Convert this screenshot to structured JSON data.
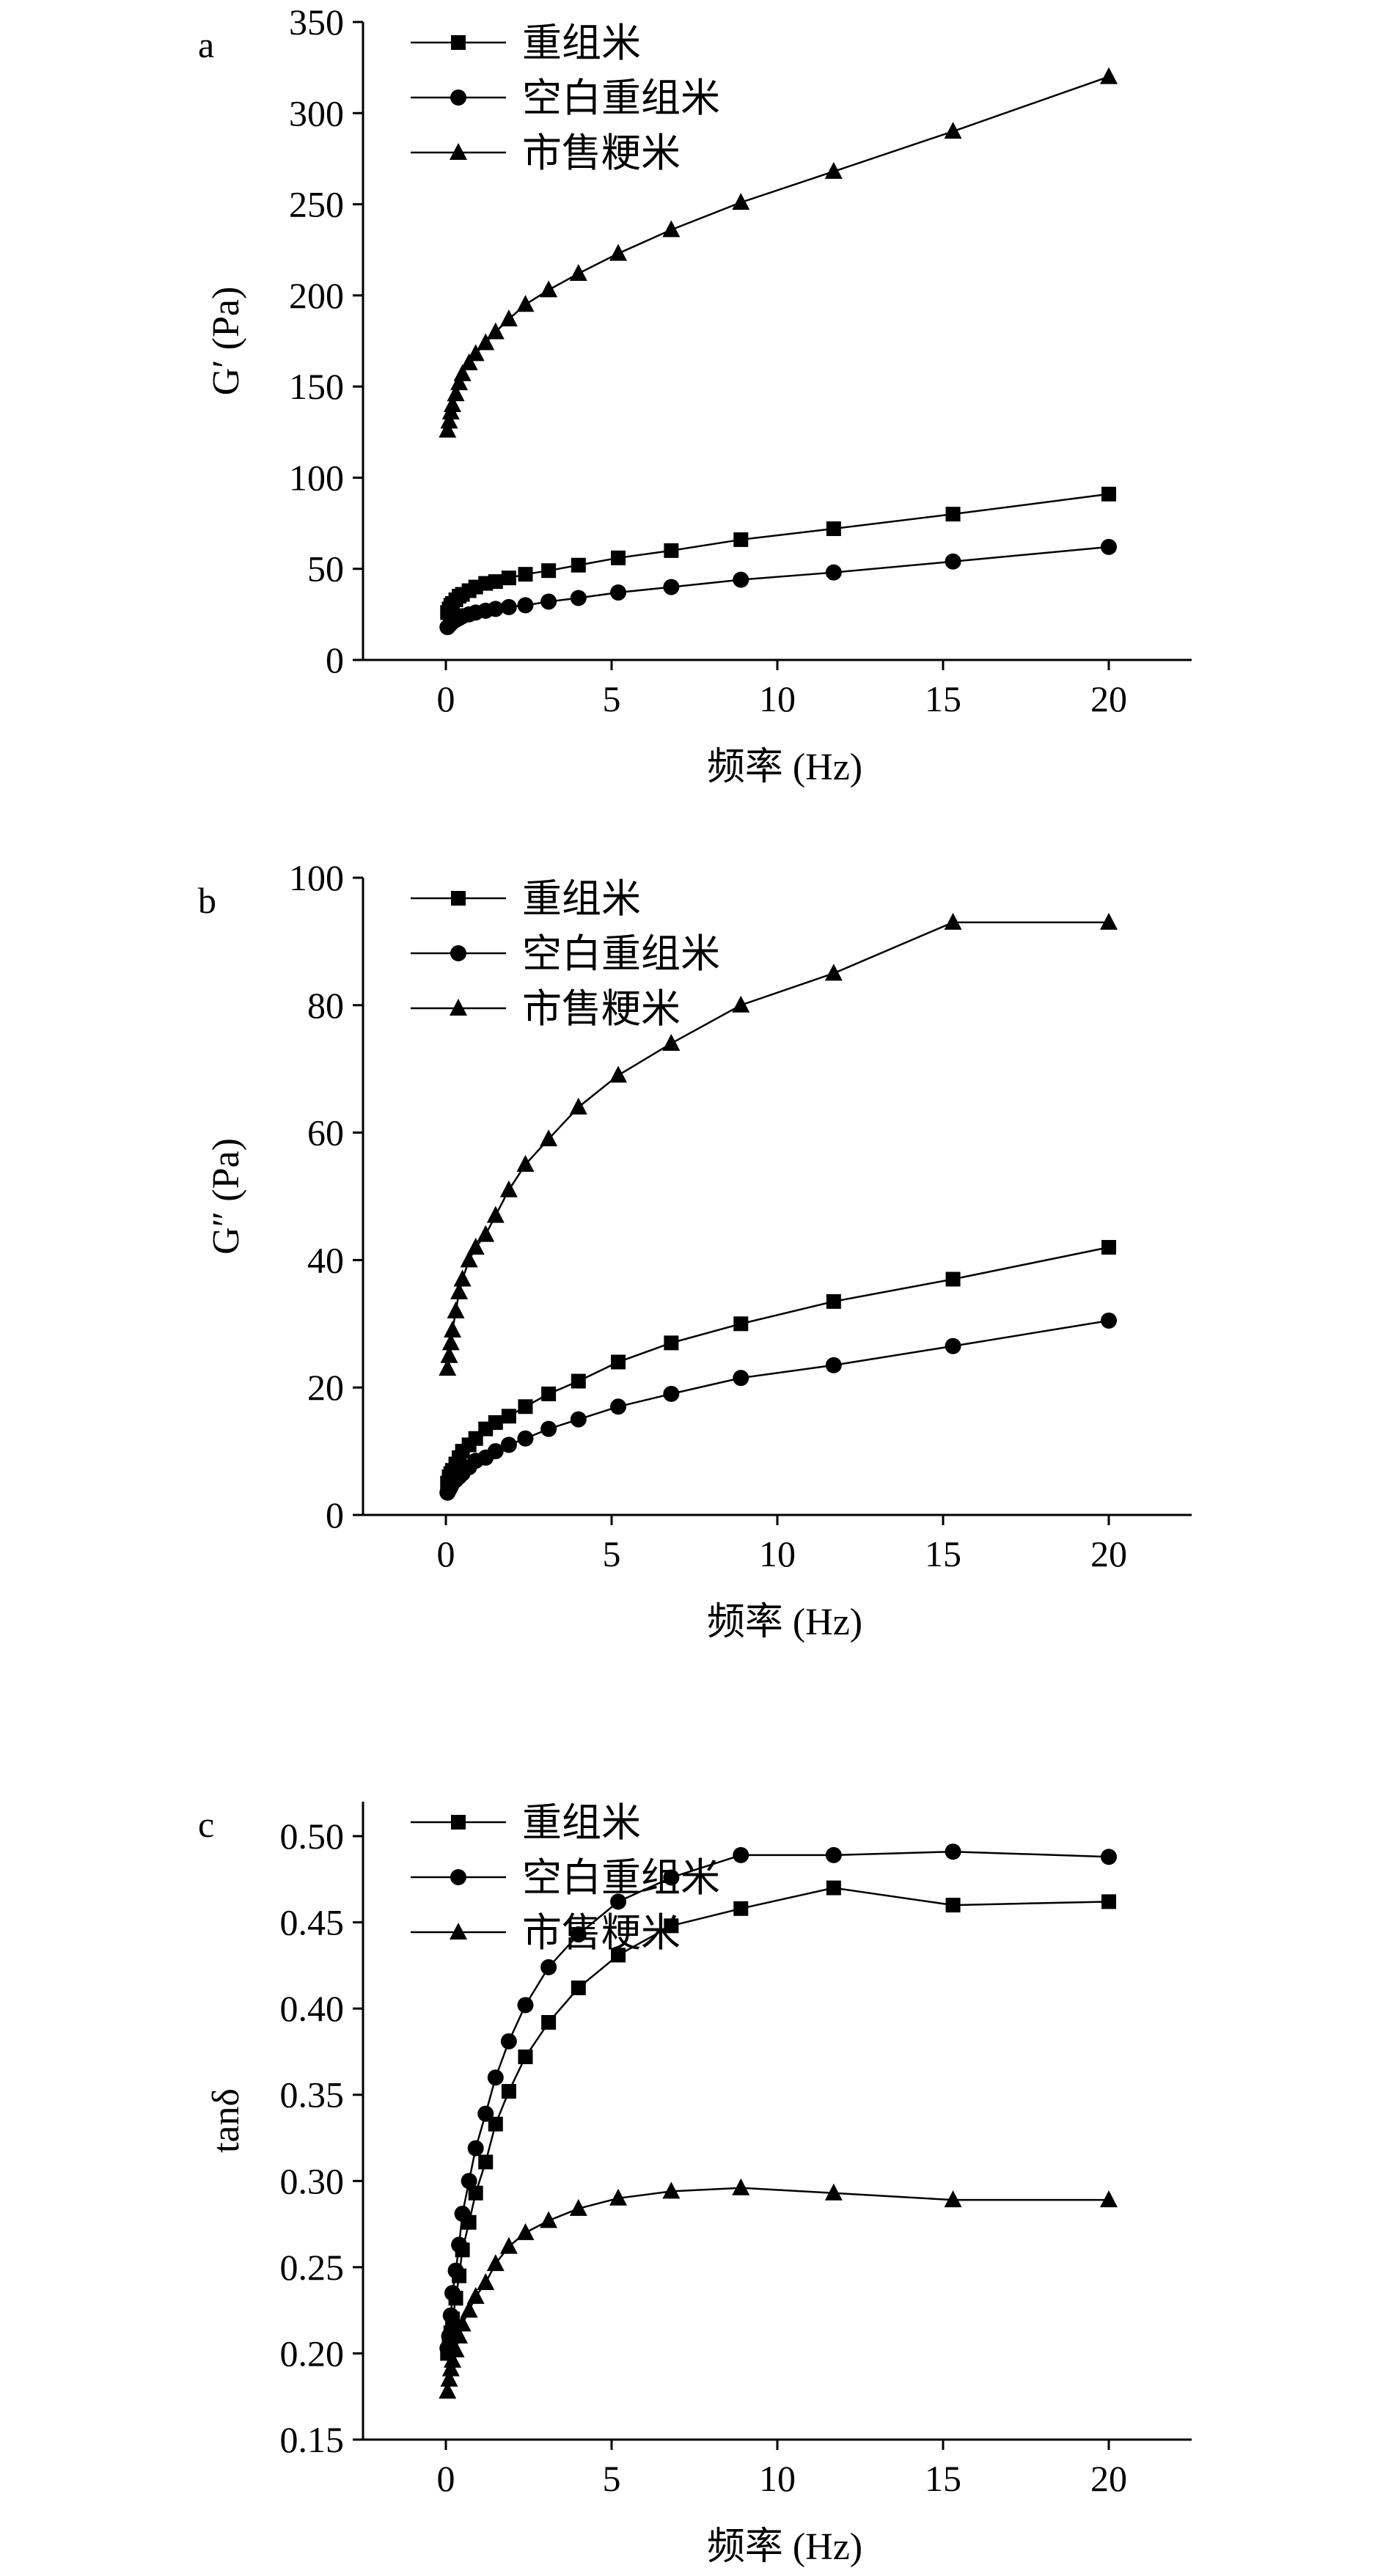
{
  "chart_data": [
    {
      "type": "line",
      "panel_label": "a",
      "xlabel": "频率 (Hz)",
      "ylabel": "G′ (Pa)",
      "xlim": [
        -2.5,
        22.5
      ],
      "ylim": [
        0,
        350
      ],
      "xticks": [
        0,
        5,
        10,
        15,
        20
      ],
      "yticks": [
        0,
        50,
        100,
        150,
        200,
        250,
        300,
        350
      ],
      "legend_position": "top-left",
      "series": [
        {
          "name": "重组米",
          "marker": "square",
          "x": [
            0.05,
            0.1,
            0.15,
            0.2,
            0.3,
            0.4,
            0.5,
            0.7,
            0.9,
            1.2,
            1.5,
            1.9,
            2.4,
            3.1,
            4.0,
            5.2,
            6.8,
            8.9,
            11.7,
            15.3,
            20.0
          ],
          "y": [
            26,
            28,
            30,
            31,
            33,
            35,
            36,
            38,
            40,
            42,
            43,
            45,
            47,
            49,
            52,
            56,
            60,
            66,
            72,
            80,
            91
          ]
        },
        {
          "name": "空白重组米",
          "marker": "circle",
          "x": [
            0.05,
            0.1,
            0.15,
            0.2,
            0.3,
            0.4,
            0.5,
            0.7,
            0.9,
            1.2,
            1.5,
            1.9,
            2.4,
            3.1,
            4.0,
            5.2,
            6.8,
            8.9,
            11.7,
            15.3,
            20.0
          ],
          "y": [
            18,
            19,
            20,
            21,
            22,
            23,
            24,
            25,
            26,
            27,
            28,
            29,
            30,
            32,
            34,
            37,
            40,
            44,
            48,
            54,
            62
          ]
        },
        {
          "name": "市售粳米",
          "marker": "triangle",
          "x": [
            0.05,
            0.1,
            0.15,
            0.2,
            0.3,
            0.4,
            0.5,
            0.7,
            0.9,
            1.2,
            1.5,
            1.9,
            2.4,
            3.1,
            4.0,
            5.2,
            6.8,
            8.9,
            11.7,
            15.3,
            20.0
          ],
          "y": [
            126,
            131,
            136,
            140,
            146,
            152,
            157,
            163,
            168,
            174,
            180,
            187,
            195,
            203,
            212,
            223,
            236,
            251,
            268,
            290,
            320
          ]
        }
      ]
    },
    {
      "type": "line",
      "panel_label": "b",
      "xlabel": "频率 (Hz)",
      "ylabel": "G″ (Pa)",
      "xlim": [
        -2.5,
        22.5
      ],
      "ylim": [
        0,
        100
      ],
      "xticks": [
        0,
        5,
        10,
        15,
        20
      ],
      "yticks": [
        0,
        20,
        40,
        60,
        80,
        100
      ],
      "legend_position": "top-left",
      "series": [
        {
          "name": "重组米",
          "marker": "square",
          "x": [
            0.05,
            0.1,
            0.15,
            0.2,
            0.3,
            0.4,
            0.5,
            0.7,
            0.9,
            1.2,
            1.5,
            1.9,
            2.4,
            3.1,
            4.0,
            5.2,
            6.8,
            8.9,
            11.7,
            15.3,
            20.0
          ],
          "y": [
            5,
            6,
            6.5,
            7,
            8,
            9,
            10,
            11,
            12,
            13.5,
            14.5,
            15.5,
            17,
            19,
            21,
            24,
            27,
            30,
            33.5,
            37,
            42
          ]
        },
        {
          "name": "空白重组米",
          "marker": "circle",
          "x": [
            0.05,
            0.1,
            0.15,
            0.2,
            0.3,
            0.4,
            0.5,
            0.7,
            0.9,
            1.2,
            1.5,
            1.9,
            2.4,
            3.1,
            4.0,
            5.2,
            6.8,
            8.9,
            11.7,
            15.3,
            20.0
          ],
          "y": [
            3.5,
            4,
            4.5,
            5,
            5.5,
            6,
            6.5,
            7.5,
            8.5,
            9,
            10,
            11,
            12,
            13.5,
            15,
            17,
            19,
            21.5,
            23.5,
            26.5,
            30.5
          ]
        },
        {
          "name": "市售粳米",
          "marker": "triangle",
          "x": [
            0.05,
            0.1,
            0.15,
            0.2,
            0.3,
            0.4,
            0.5,
            0.7,
            0.9,
            1.2,
            1.5,
            1.9,
            2.4,
            3.1,
            4.0,
            5.2,
            6.8,
            8.9,
            11.7,
            15.3,
            20.0
          ],
          "y": [
            23,
            25,
            27,
            29,
            32,
            35,
            37,
            40,
            42,
            44,
            47,
            51,
            55,
            59,
            64,
            69,
            74,
            80,
            85,
            93,
            93
          ]
        }
      ]
    },
    {
      "type": "line",
      "panel_label": "c",
      "xlabel": "频率 (Hz)",
      "ylabel": "tanδ",
      "xlim": [
        -2.5,
        22.5
      ],
      "ylim": [
        0.15,
        0.52
      ],
      "xticks": [
        0,
        5,
        10,
        15,
        20
      ],
      "yticks": [
        0.15,
        0.2,
        0.25,
        0.3,
        0.35,
        0.4,
        0.45,
        0.5
      ],
      "ytick_labels": [
        "0.15",
        "0.20",
        "0.25",
        "0.30",
        "0.35",
        "0.40",
        "0.45",
        "0.50"
      ],
      "legend_position": "top-left",
      "series": [
        {
          "name": "重组米",
          "marker": "square",
          "x": [
            0.05,
            0.1,
            0.15,
            0.2,
            0.3,
            0.4,
            0.5,
            0.7,
            0.9,
            1.2,
            1.5,
            1.9,
            2.4,
            3.1,
            4.0,
            5.2,
            6.8,
            8.9,
            11.7,
            15.3,
            20.0
          ],
          "y": [
            0.2,
            0.205,
            0.212,
            0.22,
            0.232,
            0.245,
            0.26,
            0.276,
            0.293,
            0.311,
            0.333,
            0.352,
            0.372,
            0.392,
            0.412,
            0.431,
            0.448,
            0.458,
            0.47,
            0.46,
            0.462
          ]
        },
        {
          "name": "空白重组米",
          "marker": "circle",
          "x": [
            0.05,
            0.1,
            0.15,
            0.2,
            0.3,
            0.4,
            0.5,
            0.7,
            0.9,
            1.2,
            1.5,
            1.9,
            2.4,
            3.1,
            4.0,
            5.2,
            6.8,
            8.9,
            11.7,
            15.3,
            20.0
          ],
          "y": [
            0.203,
            0.21,
            0.222,
            0.235,
            0.248,
            0.263,
            0.281,
            0.3,
            0.319,
            0.339,
            0.36,
            0.381,
            0.402,
            0.424,
            0.443,
            0.462,
            0.476,
            0.489,
            0.489,
            0.491,
            0.488
          ]
        },
        {
          "name": "市售粳米",
          "marker": "triangle",
          "x": [
            0.05,
            0.1,
            0.15,
            0.2,
            0.3,
            0.4,
            0.5,
            0.7,
            0.9,
            1.2,
            1.5,
            1.9,
            2.4,
            3.1,
            4.0,
            5.2,
            6.8,
            8.9,
            11.7,
            15.3,
            20.0
          ],
          "y": [
            0.178,
            0.185,
            0.191,
            0.196,
            0.202,
            0.21,
            0.217,
            0.225,
            0.233,
            0.241,
            0.252,
            0.262,
            0.27,
            0.277,
            0.284,
            0.29,
            0.294,
            0.296,
            0.293,
            0.289,
            0.289
          ]
        }
      ]
    }
  ]
}
